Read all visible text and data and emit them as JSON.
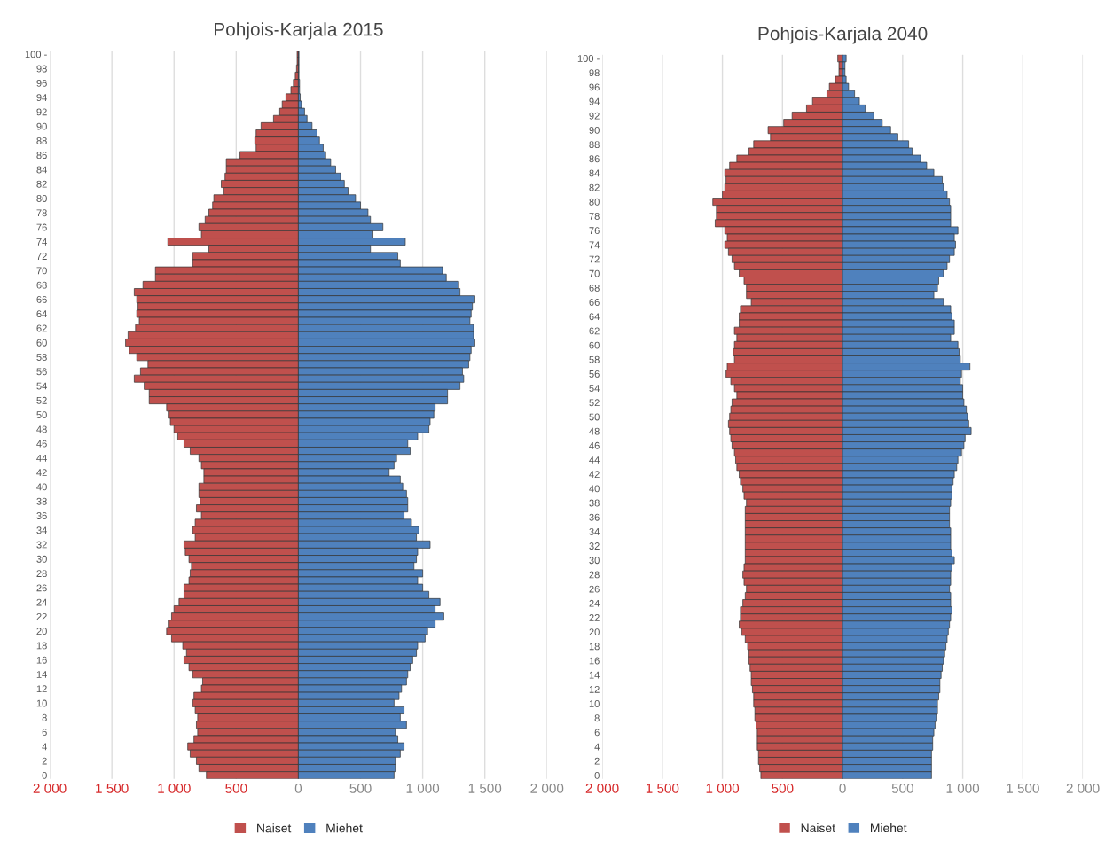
{
  "chart_data": [
    {
      "type": "bar",
      "orientation": "horizontal",
      "stacked": true,
      "title": "Pohjois-Karjala 2015",
      "categories": [
        "100 -",
        null,
        "98",
        null,
        "96",
        null,
        "94",
        null,
        "92",
        null,
        "90",
        null,
        "88",
        null,
        "86",
        null,
        "84",
        null,
        "82",
        null,
        "80",
        null,
        "78",
        null,
        "76",
        null,
        "74",
        null,
        "72",
        null,
        "70",
        null,
        "68",
        null,
        "66",
        null,
        "64",
        null,
        "62",
        null,
        "60",
        null,
        "58",
        null,
        "56",
        null,
        "54",
        null,
        "52",
        null,
        "50",
        null,
        "48",
        null,
        "46",
        null,
        "44",
        null,
        "42",
        null,
        "40",
        null,
        "38",
        null,
        "36",
        null,
        "34",
        null,
        "32",
        null,
        "30",
        null,
        "28",
        null,
        "26",
        null,
        "24",
        null,
        "22",
        null,
        "20",
        null,
        "18",
        null,
        "16",
        null,
        "14",
        null,
        "12",
        null,
        "10",
        null,
        "8",
        null,
        "6",
        null,
        "4",
        null,
        "2",
        null,
        "0"
      ],
      "series": [
        {
          "name": "Naiset",
          "color": "#c0504d",
          "values": [
            -10,
            -10,
            -15,
            -25,
            -40,
            -60,
            -100,
            -130,
            -150,
            -200,
            -300,
            -340,
            -350,
            -340,
            -470,
            -580,
            -580,
            -590,
            -620,
            -600,
            -680,
            -690,
            -720,
            -750,
            -800,
            -780,
            -1050,
            -720,
            -850,
            -850,
            -1150,
            -1150,
            -1250,
            -1320,
            -1300,
            -1290,
            -1300,
            -1280,
            -1310,
            -1370,
            -1390,
            -1360,
            -1300,
            -1210,
            -1270,
            -1320,
            -1240,
            -1200,
            -1200,
            -1060,
            -1040,
            -1030,
            -1000,
            -970,
            -920,
            -870,
            -800,
            -780,
            -760,
            -760,
            -800,
            -800,
            -790,
            -820,
            -780,
            -830,
            -850,
            -830,
            -920,
            -910,
            -880,
            -860,
            -870,
            -880,
            -920,
            -920,
            -960,
            -1000,
            -1020,
            -1040,
            -1060,
            -1020,
            -930,
            -900,
            -920,
            -880,
            -850,
            -770,
            -780,
            -840,
            -850,
            -830,
            -810,
            -820,
            -810,
            -840,
            -890,
            -870,
            -820,
            -800,
            -740
          ]
        },
        {
          "name": "Miehet",
          "color": "#4f81bd",
          "values": [
            5,
            5,
            5,
            5,
            10,
            10,
            15,
            25,
            50,
            70,
            110,
            150,
            170,
            200,
            220,
            260,
            300,
            340,
            370,
            400,
            460,
            500,
            560,
            580,
            680,
            600,
            860,
            580,
            800,
            820,
            1160,
            1190,
            1290,
            1300,
            1420,
            1400,
            1390,
            1380,
            1410,
            1410,
            1420,
            1390,
            1380,
            1370,
            1320,
            1330,
            1300,
            1200,
            1200,
            1100,
            1090,
            1060,
            1050,
            960,
            880,
            900,
            790,
            770,
            730,
            820,
            840,
            870,
            880,
            880,
            850,
            910,
            970,
            950,
            1060,
            960,
            950,
            930,
            1000,
            960,
            1000,
            1050,
            1140,
            1100,
            1170,
            1100,
            1040,
            1020,
            960,
            950,
            920,
            900,
            880,
            870,
            830,
            810,
            770,
            850,
            820,
            870,
            780,
            800,
            850,
            820,
            780,
            780,
            770
          ]
        }
      ],
      "xlim": [
        -2000,
        2000
      ],
      "xticks": [
        {
          "value": -2000,
          "label": "2 000"
        },
        {
          "value": -1500,
          "label": "1 500"
        },
        {
          "value": -1000,
          "label": "1 000"
        },
        {
          "value": -500,
          "label": "500"
        },
        0,
        500,
        {
          "value": 1000,
          "label": "1 000"
        },
        {
          "value": 1500,
          "label": "1 500"
        },
        {
          "value": 2000,
          "label": "2 000"
        }
      ],
      "grid": "x",
      "legend": "bottom"
    },
    {
      "type": "bar",
      "orientation": "horizontal",
      "stacked": true,
      "title": "Pohjois-Karjala 2040",
      "categories": [
        "100 -",
        null,
        "98",
        null,
        "96",
        null,
        "94",
        null,
        "92",
        null,
        "90",
        null,
        "88",
        null,
        "86",
        null,
        "84",
        null,
        "82",
        null,
        "80",
        null,
        "78",
        null,
        "76",
        null,
        "74",
        null,
        "72",
        null,
        "70",
        null,
        "68",
        null,
        "66",
        null,
        "64",
        null,
        "62",
        null,
        "60",
        null,
        "58",
        null,
        "56",
        null,
        "54",
        null,
        "52",
        null,
        "50",
        null,
        "48",
        null,
        "46",
        null,
        "44",
        null,
        "42",
        null,
        "40",
        null,
        "38",
        null,
        "36",
        null,
        "34",
        null,
        "32",
        null,
        "30",
        null,
        "28",
        null,
        "26",
        null,
        "24",
        null,
        "22",
        null,
        "20",
        null,
        "18",
        null,
        "16",
        null,
        "14",
        null,
        "12",
        null,
        "10",
        null,
        "8",
        null,
        "6",
        null,
        "4",
        null,
        "2",
        null,
        "0"
      ],
      "series": [
        {
          "name": "Naiset",
          "color": "#c0504d",
          "values": [
            -40,
            -30,
            -30,
            -60,
            -110,
            -130,
            -250,
            -300,
            -420,
            -490,
            -620,
            -600,
            -740,
            -780,
            -880,
            -940,
            -980,
            -970,
            -980,
            -1000,
            -1080,
            -1050,
            -1050,
            -1060,
            -980,
            -960,
            -980,
            -950,
            -920,
            -900,
            -860,
            -820,
            -800,
            -800,
            -760,
            -850,
            -860,
            -860,
            -900,
            -880,
            -900,
            -910,
            -900,
            -960,
            -970,
            -930,
            -900,
            -880,
            -920,
            -930,
            -940,
            -950,
            -940,
            -930,
            -920,
            -900,
            -890,
            -880,
            -860,
            -850,
            -830,
            -820,
            -800,
            -810,
            -810,
            -810,
            -810,
            -810,
            -810,
            -810,
            -810,
            -820,
            -830,
            -820,
            -800,
            -810,
            -830,
            -850,
            -850,
            -860,
            -840,
            -810,
            -790,
            -780,
            -780,
            -770,
            -760,
            -760,
            -750,
            -740,
            -740,
            -730,
            -730,
            -720,
            -710,
            -710,
            -710,
            -700,
            -700,
            -690,
            -680
          ]
        },
        {
          "name": "Miehet",
          "color": "#4f81bd",
          "values": [
            30,
            20,
            20,
            30,
            50,
            100,
            140,
            190,
            260,
            330,
            400,
            460,
            550,
            580,
            650,
            700,
            760,
            830,
            840,
            870,
            890,
            900,
            900,
            900,
            960,
            930,
            940,
            930,
            890,
            870,
            840,
            800,
            790,
            760,
            840,
            900,
            910,
            930,
            930,
            900,
            960,
            970,
            980,
            1060,
            990,
            980,
            1000,
            1000,
            1010,
            1030,
            1040,
            1050,
            1070,
            1020,
            1010,
            990,
            960,
            950,
            930,
            920,
            910,
            910,
            900,
            890,
            890,
            890,
            900,
            900,
            900,
            910,
            930,
            910,
            900,
            900,
            890,
            900,
            900,
            910,
            900,
            890,
            880,
            870,
            860,
            850,
            840,
            830,
            820,
            810,
            810,
            800,
            790,
            790,
            780,
            770,
            760,
            750,
            750,
            740,
            740,
            740,
            740
          ]
        }
      ],
      "xlim": [
        -2000,
        2000
      ],
      "xticks": [
        {
          "value": -2000,
          "label": "2 000"
        },
        {
          "value": -1500,
          "label": "1 500"
        },
        {
          "value": -1000,
          "label": "1 000"
        },
        {
          "value": -500,
          "label": "500"
        },
        0,
        500,
        {
          "value": 1000,
          "label": "1 000"
        },
        {
          "value": 1500,
          "label": "1 500"
        },
        {
          "value": 2000,
          "label": "2 000"
        }
      ],
      "grid": "x",
      "legend": "bottom"
    }
  ]
}
